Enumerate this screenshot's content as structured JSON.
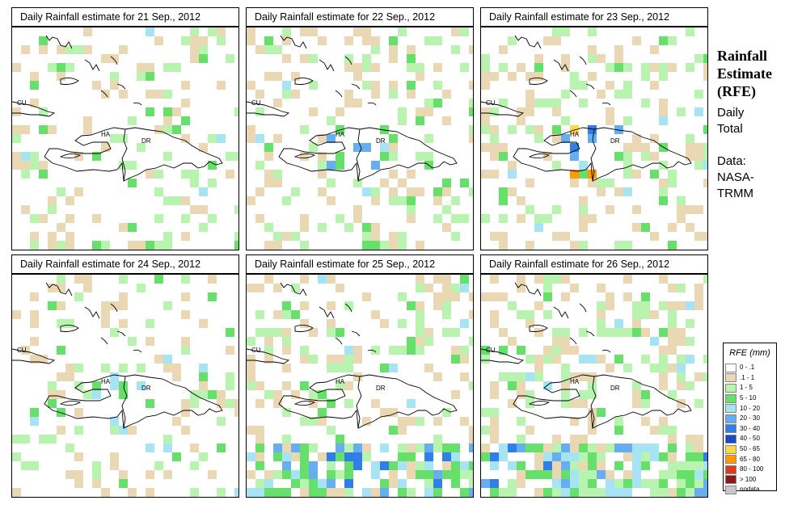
{
  "panels": [
    {
      "title": "Daily Rainfall estimate for  21 Sep., 2012",
      "seed": 21,
      "p": 0.24,
      "focus": 0
    },
    {
      "title": "Daily Rainfall estimate for  22 Sep., 2012",
      "seed": 22,
      "p": 0.28,
      "focus": 1
    },
    {
      "title": "Daily Rainfall estimate for  23 Sep., 2012",
      "seed": 23,
      "p": 0.3,
      "focus": 2
    },
    {
      "title": "Daily Rainfall estimate for  24 Sep., 2012",
      "seed": 24,
      "p": 0.22,
      "focus": 1
    },
    {
      "title": "Daily Rainfall estimate for  25 Sep., 2012",
      "seed": 25,
      "p": 0.3,
      "focus": 3
    },
    {
      "title": "Daily Rainfall estimate for  26 Sep., 2012",
      "seed": 26,
      "p": 0.36,
      "focus": 3
    }
  ],
  "map_labels": {
    "cuba": "CU",
    "haiti": "HA",
    "dominican_republic": "DR"
  },
  "side": {
    "title_line1": "Rainfall",
    "title_line2": "Estimate",
    "title_line3": "(RFE)",
    "daily": "Daily",
    "total": "Total",
    "data_label": "Data:",
    "source_line1": "NASA-",
    "source_line2": "TRMM"
  },
  "legend": {
    "title": "RFE (mm)",
    "items": [
      {
        "label": "0 - .1",
        "color": "#ffffff"
      },
      {
        "label": ".1 - 1",
        "color": "#ead7b4"
      },
      {
        "label": "1 - 5",
        "color": "#b8f3b0"
      },
      {
        "label": "5 - 10",
        "color": "#66e06a"
      },
      {
        "label": "10 - 20",
        "color": "#a6e4f4"
      },
      {
        "label": "20 - 30",
        "color": "#66aef0"
      },
      {
        "label": "30 - 40",
        "color": "#2f7fe6"
      },
      {
        "label": "40 - 50",
        "color": "#1a46c8"
      },
      {
        "label": "50 - 65",
        "color": "#ffd84a"
      },
      {
        "label": "65 - 80",
        "color": "#ff9a00"
      },
      {
        "label": "80 - 100",
        "color": "#e03a1e"
      },
      {
        "label": "> 100",
        "color": "#8a1a12"
      },
      {
        "label": "nodata",
        "color": "#c8c8c8"
      }
    ]
  }
}
